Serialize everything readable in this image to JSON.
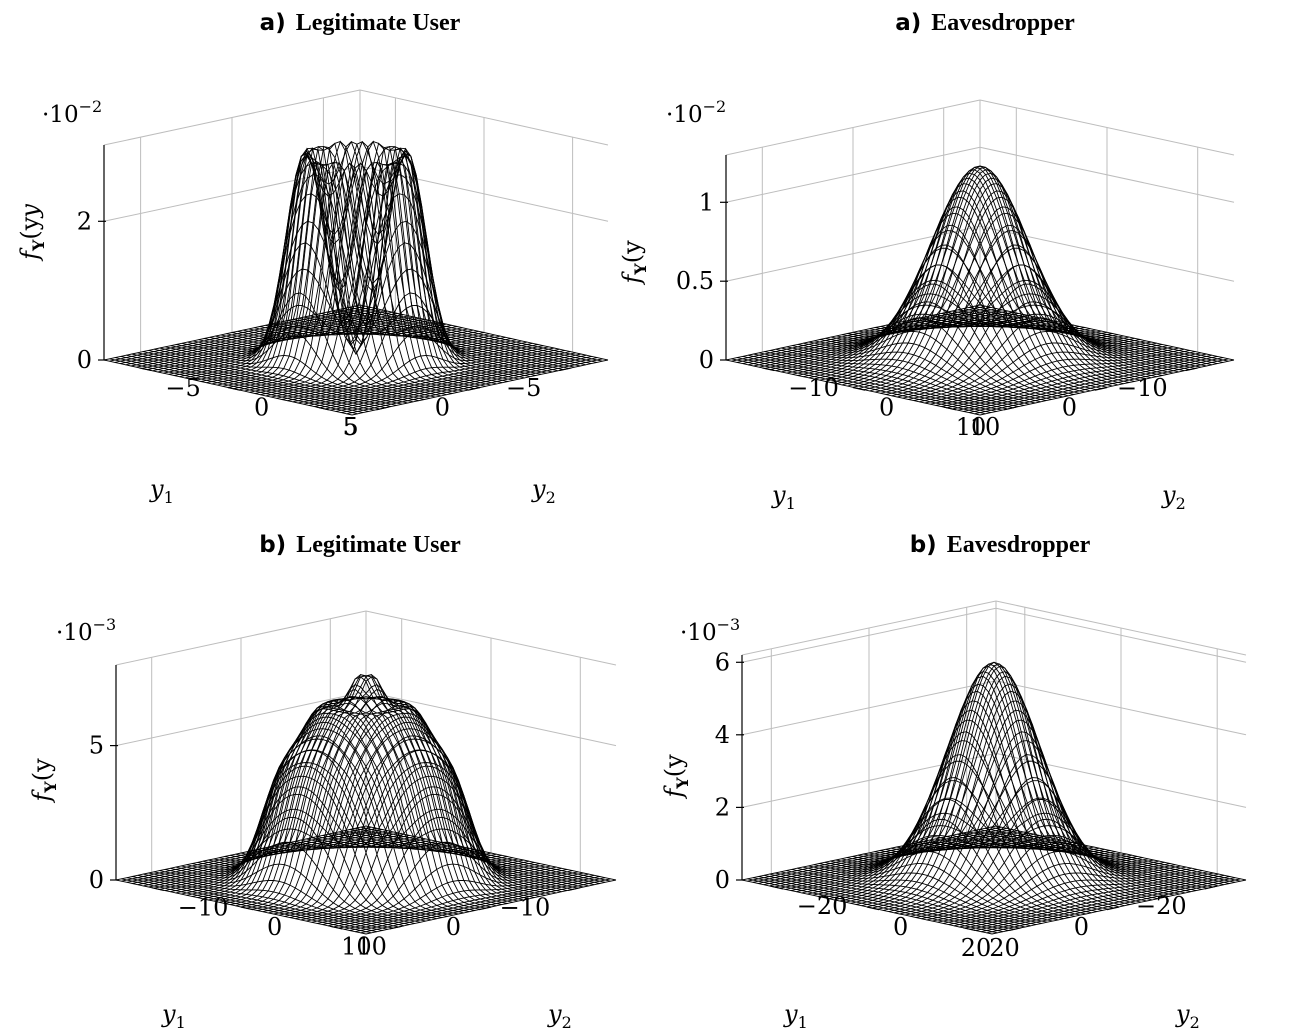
{
  "figure_labels": {
    "z_axis_label": "f",
    "z_axis_sub": "Y",
    "z_axis_args": "(y",
    "y1_label": "y",
    "y2_label": "y",
    "sub1": "1",
    "sub2": "2"
  },
  "chart_data": [
    {
      "type": "surface",
      "panel": "a",
      "title_prefix": "a)",
      "title": "Legitimate User",
      "scale_base": "·10",
      "scale_exp": "−2",
      "x_ticks": [
        "−5",
        "0",
        "5"
      ],
      "y_ticks": [
        "−5",
        "0",
        "5"
      ],
      "z_ticks": [
        "0",
        "2"
      ],
      "x_range": [
        -7,
        7
      ],
      "y_range": [
        -7,
        7
      ],
      "z_range": [
        0,
        3.1
      ],
      "z_tick_values": [
        0,
        2
      ],
      "xy_tick_values": [
        -5,
        0,
        5
      ],
      "surface": {
        "shape": "ring",
        "ring_radius": 2.0,
        "sigma": 0.75,
        "peak": 3.0
      },
      "xlabel": "y1",
      "ylabel": "y2",
      "zlabel": "fY(y1, y2)"
    },
    {
      "type": "surface",
      "panel": "a",
      "title_prefix": "a)",
      "title": "Eavesdropper",
      "scale_base": "·10",
      "scale_exp": "−2",
      "x_ticks": [
        "−10",
        "0",
        "10"
      ],
      "y_ticks": [
        "−10",
        "0",
        "10"
      ],
      "z_ticks": [
        "0",
        "0.5",
        "1"
      ],
      "x_range": [
        -14,
        14
      ],
      "y_range": [
        -14,
        14
      ],
      "z_range": [
        0,
        1.3
      ],
      "z_tick_values": [
        0,
        0.5,
        1
      ],
      "xy_tick_values": [
        -10,
        0,
        10
      ],
      "surface": {
        "shape": "gaussian",
        "sigma": 3.8,
        "peak": 1.23
      },
      "xlabel": "y1",
      "ylabel": "y2",
      "zlabel": "fY(y1, y2)"
    },
    {
      "type": "surface",
      "panel": "b",
      "title_prefix": "b)",
      "title": "Legitimate User",
      "scale_base": "·10",
      "scale_exp": "−3",
      "x_ticks": [
        "−10",
        "0",
        "10"
      ],
      "y_ticks": [
        "−10",
        "0",
        "10"
      ],
      "z_ticks": [
        "0",
        "5"
      ],
      "x_range": [
        -14,
        14
      ],
      "y_range": [
        -14,
        14
      ],
      "z_range": [
        0,
        8
      ],
      "z_tick_values": [
        0,
        5
      ],
      "xy_tick_values": [
        -10,
        0,
        10
      ],
      "surface": {
        "shape": "rings",
        "rings": [
          {
            "r": 0,
            "a": 7.2
          },
          {
            "r": 3.6,
            "a": 5.4
          },
          {
            "r": 6.8,
            "a": 3.5
          }
        ],
        "sigma": 1.6
      },
      "xlabel": "y1",
      "ylabel": "y2",
      "zlabel": "fY(y1, y2)"
    },
    {
      "type": "surface",
      "panel": "b",
      "title_prefix": "b)",
      "title": "Eavesdropper",
      "scale_base": "·10",
      "scale_exp": "−3",
      "x_ticks": [
        "−20",
        "0",
        "20"
      ],
      "y_ticks": [
        "−20",
        "0",
        "20"
      ],
      "z_ticks": [
        "0",
        "2",
        "4",
        "6"
      ],
      "x_range": [
        -26,
        26
      ],
      "y_range": [
        -26,
        26
      ],
      "z_range": [
        0,
        6.2
      ],
      "z_tick_values": [
        0,
        2,
        4,
        6
      ],
      "xy_tick_values": [
        -20,
        0,
        20
      ],
      "surface": {
        "shape": "gaussian",
        "sigma": 6.8,
        "peak": 6.0
      },
      "xlabel": "y1",
      "ylabel": "y2",
      "zlabel": "fY(y1, y2)"
    }
  ]
}
